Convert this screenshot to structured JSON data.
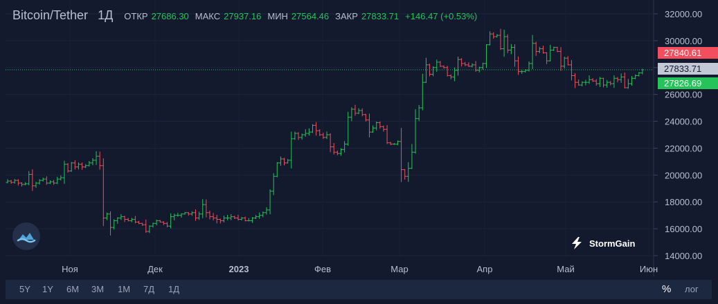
{
  "header": {
    "symbol": "Bitcoin/Tether",
    "timeframe": "1Д",
    "open_label": "ОТКР",
    "open_value": "27686.30",
    "high_label": "МАКС",
    "high_value": "27937.16",
    "low_label": "МИН",
    "low_value": "27564.46",
    "close_label": "ЗАКР",
    "close_value": "27833.71",
    "change": "+146.47 (+0.53%)"
  },
  "price_tags": {
    "ask": "27840.61",
    "last": "27833.71",
    "bid": "27826.69"
  },
  "brand": "StormGain",
  "toolbar": {
    "ranges": [
      "5Y",
      "1Y",
      "6M",
      "3M",
      "1M",
      "7Д",
      "1Д"
    ],
    "percent": "%",
    "log": "лог"
  },
  "colors": {
    "up": "#26c35a",
    "down": "#f24e5d",
    "background": "#131a2d"
  },
  "chart_data": {
    "type": "candlestick",
    "ylim": [
      14000,
      32000
    ],
    "y_ticks": [
      "32000.00",
      "30000.00",
      "28000.00",
      "26000.00",
      "24000.00",
      "22000.00",
      "20000.00",
      "18000.00",
      "16000.00",
      "14000.00"
    ],
    "x_tick_labels": [
      "Ноя",
      "Дек",
      "2023",
      "Фев",
      "Мар",
      "Апр",
      "Май",
      "Июн"
    ],
    "last_price": 27833.71,
    "approximate_daily_closes": [
      19550,
      19450,
      19600,
      19400,
      19300,
      19350,
      20050,
      19200,
      19400,
      19600,
      19700,
      19400,
      19500,
      19400,
      19700,
      19800,
      20800,
      20300,
      20900,
      20600,
      20800,
      20600,
      20700,
      20900,
      21100,
      21400,
      20700,
      16800,
      17100,
      16100,
      16600,
      16800,
      16900,
      16700,
      16600,
      16700,
      16500,
      16400,
      16300,
      15800,
      16200,
      16400,
      16600,
      16500,
      16400,
      16200,
      16900,
      17000,
      17000,
      17100,
      17200,
      17100,
      17200,
      16800,
      17100,
      17800,
      17200,
      16900,
      16800,
      16700,
      16600,
      16800,
      16800,
      16900,
      16800,
      16700,
      16800,
      16600,
      16600,
      16800,
      16900,
      17000,
      17200,
      17400,
      18800,
      19900,
      20900,
      21200,
      20900,
      21100,
      22700,
      23100,
      22800,
      23000,
      23100,
      23200,
      23700,
      23300,
      23000,
      22800,
      23000,
      22100,
      21700,
      21600,
      21900,
      22300,
      24300,
      24900,
      24600,
      24800,
      24500,
      24100,
      23200,
      23500,
      23900,
      23600,
      23400,
      22400,
      22300,
      22300,
      22500,
      20400,
      19900,
      20500,
      21700,
      24200,
      25000,
      26900,
      28200,
      27500,
      28000,
      28400,
      28100,
      28000,
      27400,
      27300,
      27800,
      28600,
      28300,
      28200,
      28100,
      28200,
      27800,
      28000,
      28300,
      29700,
      30500,
      30300,
      30400,
      29400,
      30300,
      29300,
      29500,
      28500,
      27700,
      27700,
      27800,
      28300,
      29800,
      29200,
      29400,
      29100,
      28500,
      29300,
      29500,
      29200,
      28100,
      28700,
      28200,
      27400,
      26900,
      26700,
      26900,
      26900,
      27100,
      27000,
      26800,
      27200,
      26700,
      26900,
      26800,
      27200,
      27100,
      27300,
      26500,
      26800,
      27200,
      27400,
      27600,
      27834
    ]
  }
}
